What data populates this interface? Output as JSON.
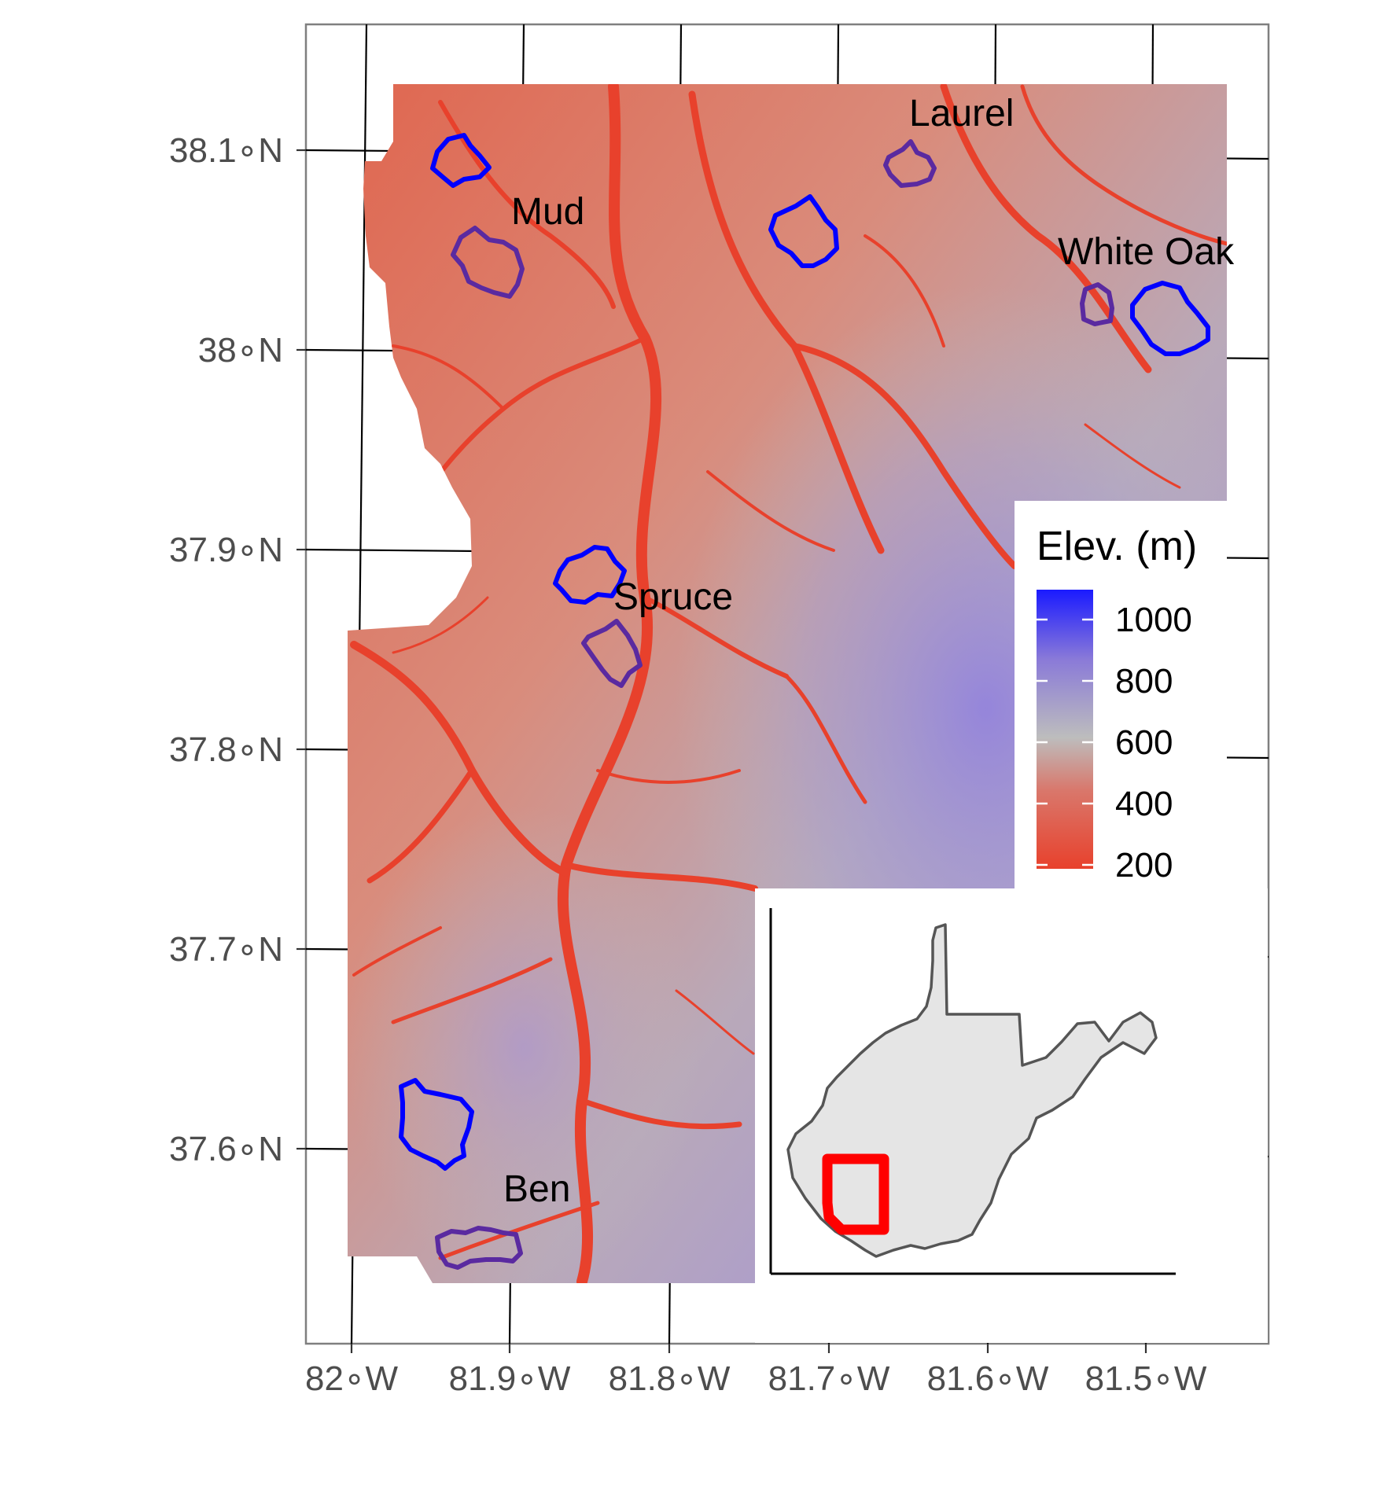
{
  "map": {
    "y_axis_labels": [
      "38.1∘N",
      "38∘N",
      "37.9∘N",
      "37.8∘N",
      "37.7∘N",
      "37.6∘N"
    ],
    "x_axis_labels": [
      "82∘W",
      "81.9∘W",
      "81.8∘W",
      "81.7∘W",
      "81.6∘W",
      "81.5∘W"
    ],
    "watersheds": [
      "Laurel",
      "Mud",
      "White Oak",
      "Spruce",
      "Ben"
    ],
    "legend": {
      "title": "Elev. (m)",
      "ticks": [
        "1000",
        "800",
        "600",
        "400",
        "200"
      ],
      "colors": {
        "low": "#e8412c",
        "mid": "#bdbdbd",
        "high": "#1a1aff"
      }
    },
    "colors": {
      "reference_watershed": "#0000ff",
      "mined_watershed": "#5a2aa0",
      "study_area_box": "#ff0000",
      "inset_state_fill": "#e5e5e5",
      "inset_state_outline": "#555555",
      "panel_border": "#7f7f7f"
    }
  }
}
